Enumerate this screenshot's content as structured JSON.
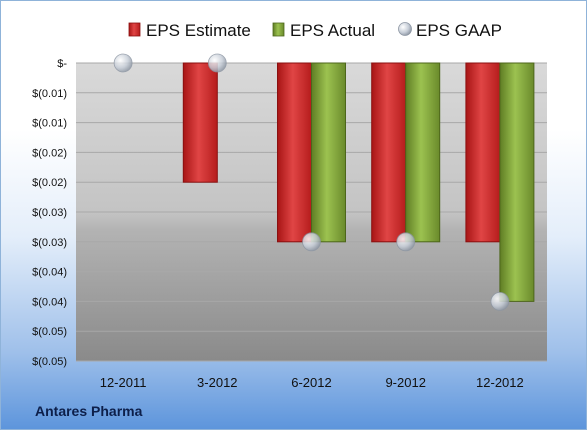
{
  "company": "Antares Pharma",
  "chart_data": {
    "type": "bar",
    "title": "",
    "xlabel": "",
    "ylabel": "",
    "categories": [
      "12-2011",
      "3-2012",
      "6-2012",
      "9-2012",
      "12-2012"
    ],
    "series": [
      {
        "name": "EPS Estimate",
        "kind": "bar",
        "color": "#d42a2a",
        "values": [
          null,
          -0.02,
          -0.03,
          -0.03,
          -0.03
        ]
      },
      {
        "name": "EPS Actual",
        "kind": "bar",
        "color": "#86aa3a",
        "values": [
          null,
          null,
          -0.03,
          -0.03,
          -0.04
        ]
      },
      {
        "name": "EPS GAAP",
        "kind": "marker",
        "color": "#b8c4d2",
        "values": [
          0,
          0,
          -0.03,
          -0.03,
          -0.04
        ]
      }
    ],
    "ylim": [
      -0.05,
      0
    ],
    "yticks": [
      0,
      -0.005,
      -0.01,
      -0.015,
      -0.02,
      -0.025,
      -0.03,
      -0.035,
      -0.04,
      -0.045,
      -0.05
    ],
    "ytick_labels": [
      "$-",
      "$(0.01)",
      "$(0.01)",
      "$(0.02)",
      "$(0.02)",
      "$(0.03)",
      "$(0.03)",
      "$(0.04)",
      "$(0.04)",
      "$(0.05)",
      "$(0.05)"
    ],
    "grid": true,
    "legend_position": "top"
  }
}
